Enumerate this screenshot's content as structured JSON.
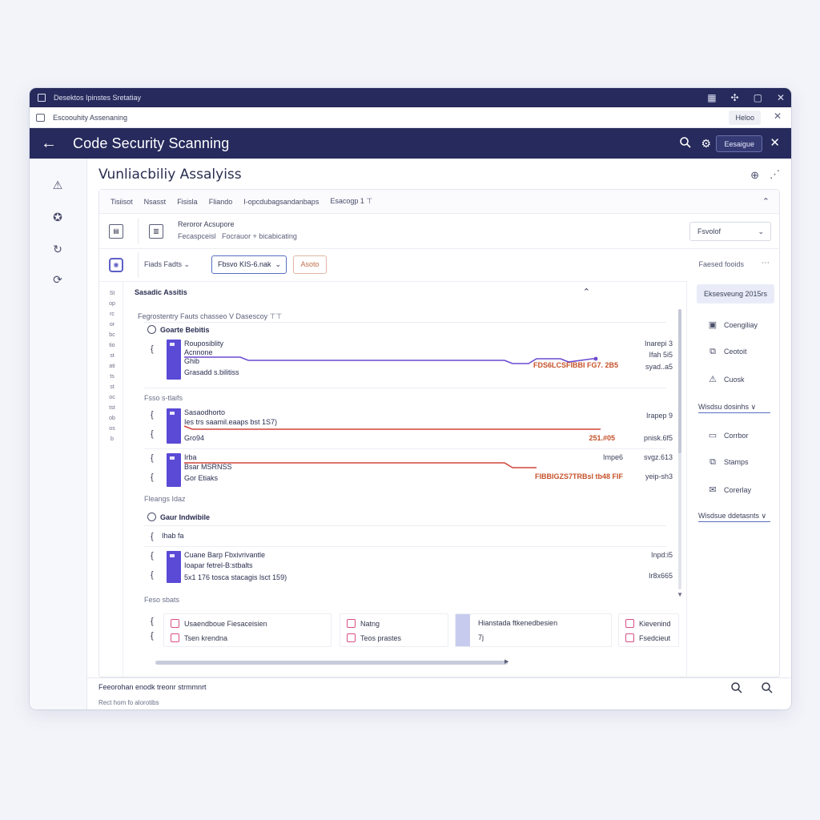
{
  "colors": {
    "brand_dark": "#262a5c",
    "accent_purple": "#5a4ad6",
    "accent_red": "#d2453c",
    "accent_pink": "#d94f86",
    "accent_blue": "#5770c2"
  },
  "titlebar": {
    "title": "Desektos Ipinstes Sretatiay"
  },
  "tab": {
    "label": "Escoouhity Assenaning",
    "pill": "Heloo"
  },
  "header": {
    "title": "Code Security Scanning",
    "button": "Eesaigue"
  },
  "page": {
    "title": "Vunliacbiliy Assalyiss"
  },
  "filters": [
    "Tisiisot",
    "Nsasst",
    "Fisisla",
    "Fliando",
    "I-opcdubagsandanbaps",
    "Esacogp 1 ⊤"
  ],
  "row2": {
    "title": "Reroror Acsupore",
    "sub_left": "Fecaspceisl",
    "sub_right": "Focrauor + bicabicating",
    "dropdown": "Fsvolof"
  },
  "row3": {
    "label": "Fiads Fadts",
    "select": "Fbsvo KIS-6.nak",
    "tag": "Asoto",
    "right_label": "Faesed fooids"
  },
  "list": {
    "side_label": "Stoprcorbctio statitsstoctstobosb",
    "section_title": "Sasadic Assitis",
    "sub_filters": "Fegrostentry  Fauts chasseo V   Dasescoy ⊤⊤",
    "group1": {
      "title": "Goarte Bebitis"
    },
    "row1": {
      "l1": "Rouposiblity",
      "l2": "Acnnone",
      "l3": "Ghib",
      "l4": "Grasadd s.bilitiss",
      "r1": "Inarepi 3",
      "r2": "Ifah 5i5",
      "r3": "syad..a5",
      "accent": "FDS6LCSFIBBI FG7. 2B5"
    },
    "group2_label": "Fsso s-tlaifs",
    "row2": {
      "l1": "Sasaodhorto",
      "l2": "Ies trs saamil.eaaps bst 1S7)",
      "l3": "Gro94",
      "r1": "Irapep 9",
      "r2": "pnisk.6f5",
      "accent": "251.#05"
    },
    "row3": {
      "l1": "Irba",
      "l2": "Bsar MSRNSS",
      "l3": "Gor Etiaks",
      "r1": "Impe6",
      "r2": "svgz.613",
      "r3": "yeip-sh3",
      "accent": "FIBBIGZS7TRBsl tb48 FIF"
    },
    "group3_label": "Fleangs Idaz",
    "group4": {
      "title": "Gaur Indwibile"
    },
    "row4": {
      "l1": "Ihab fa"
    },
    "row5": {
      "l1": "Cuane Barp Fbxivrivantle",
      "l2": "Ioapar fetrel-B:stbalts",
      "l3": "5x1 176 tosca stacagis lsct 159)",
      "r1": "Inpd:i5",
      "r2": "Ir8x665"
    },
    "group5_label": "Feso sbats",
    "cards": [
      {
        "l1": "Usaendboue Fiesaceisien",
        "l2": "Tsen krendna"
      },
      {
        "l1": "Natng",
        "l2": "Teos prastes"
      },
      {
        "l1": "Hianstada ftkenedbesien",
        "l2": "7j"
      },
      {
        "l1": "Kievenind",
        "l2": "Fsedcieut"
      }
    ]
  },
  "rightpanel": {
    "header": "Eksesveung 2015rs",
    "items1": [
      {
        "icon": "calendar-icon",
        "label": "Coengiliay"
      },
      {
        "icon": "copy-icon",
        "label": "Ceotoit"
      },
      {
        "icon": "alert-icon",
        "label": "Cuosk"
      }
    ],
    "link1": "Wisdsu dosinhs  ∨",
    "items2": [
      {
        "icon": "card-icon",
        "label": "Corrbor"
      },
      {
        "icon": "share-icon",
        "label": "Stamps"
      },
      {
        "icon": "mail-icon",
        "label": "Corerlay"
      }
    ],
    "link2": "Wisdsue ddetasnts  ∨"
  },
  "footer": {
    "line1": "Feeorohan enodk treonr strmmnrt",
    "line2": "Rect hom fo alorotibs"
  }
}
